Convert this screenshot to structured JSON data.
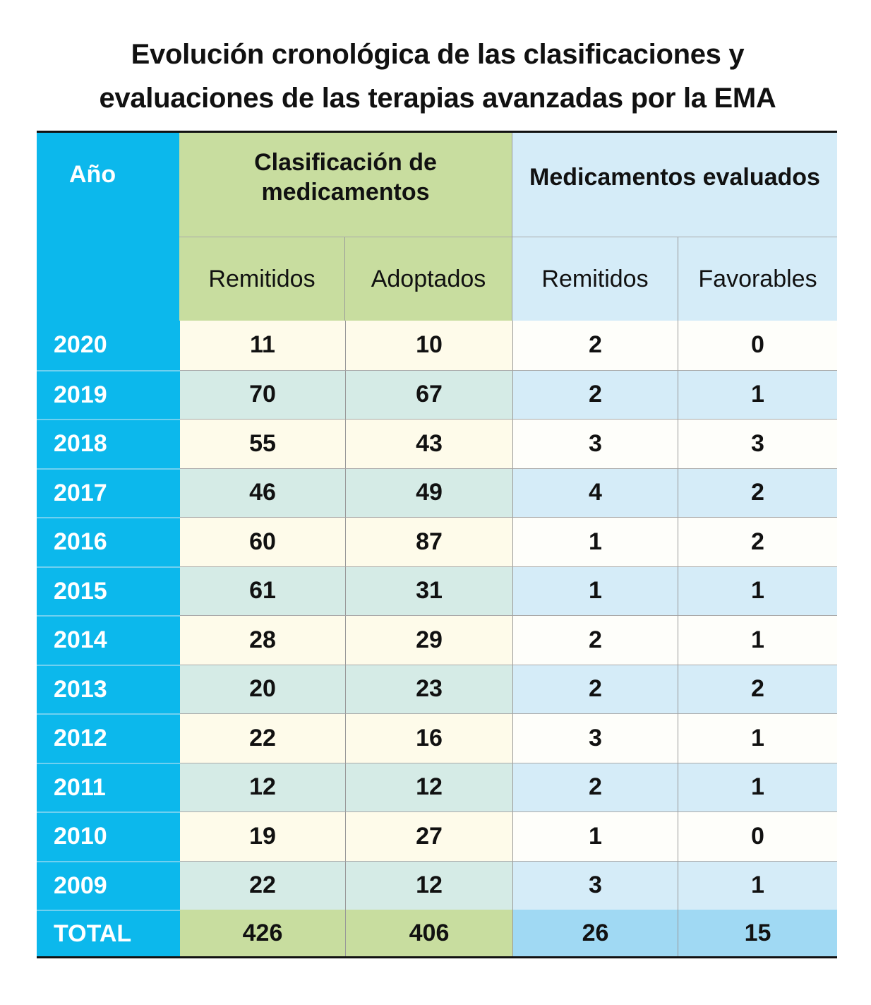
{
  "title": "Evolución cronológica de las clasificaciones y evaluaciones de las terapias avanzadas por la EMA",
  "title_lines": [
    "Evolución cronológica de las clasificaciones y",
    "evaluaciones de las terapias avanzadas por la EMA"
  ],
  "colors": {
    "year_column": "#0cb8ec",
    "clasificacion_header": "#c8dd9f",
    "evaluados_header": "#d5ecf8",
    "total_blue": "#a0d9f3"
  },
  "chart_data": {
    "type": "table",
    "title": "Evolución cronológica de las clasificaciones y evaluaciones de las terapias avanzadas por la EMA",
    "year_header": "Año",
    "groups": [
      {
        "label": "Clasificación de medicamentos",
        "columns": [
          "Remitidos",
          "Adoptados"
        ]
      },
      {
        "label": "Medicamentos evaluados",
        "columns": [
          "Remitidos",
          "Favorables"
        ]
      }
    ],
    "rows": [
      {
        "year": "2020",
        "values": [
          11,
          10,
          2,
          0
        ]
      },
      {
        "year": "2019",
        "values": [
          70,
          67,
          2,
          1
        ]
      },
      {
        "year": "2018",
        "values": [
          55,
          43,
          3,
          3
        ]
      },
      {
        "year": "2017",
        "values": [
          46,
          49,
          4,
          2
        ]
      },
      {
        "year": "2016",
        "values": [
          60,
          87,
          1,
          2
        ]
      },
      {
        "year": "2015",
        "values": [
          61,
          31,
          1,
          1
        ]
      },
      {
        "year": "2014",
        "values": [
          28,
          29,
          2,
          1
        ]
      },
      {
        "year": "2013",
        "values": [
          20,
          23,
          2,
          2
        ]
      },
      {
        "year": "2012",
        "values": [
          22,
          16,
          3,
          1
        ]
      },
      {
        "year": "2011",
        "values": [
          12,
          12,
          2,
          1
        ]
      },
      {
        "year": "2010",
        "values": [
          19,
          27,
          1,
          0
        ]
      },
      {
        "year": "2009",
        "values": [
          22,
          12,
          3,
          1
        ]
      }
    ],
    "total": {
      "label": "TOTAL",
      "values": [
        426,
        406,
        26,
        15
      ]
    }
  }
}
